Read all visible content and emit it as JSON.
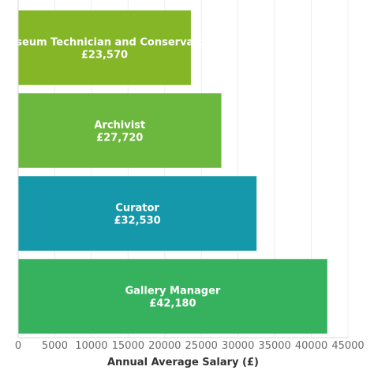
{
  "chart_data": {
    "type": "bar",
    "orientation": "horizontal",
    "categories": [
      "Museum Technician and Conservator",
      "Archivist",
      "Curator",
      "Gallery Manager"
    ],
    "values": [
      23570,
      27720,
      32530,
      42180
    ],
    "value_labels": [
      "£23,570",
      "£27,720",
      "£32,530",
      "£42,180"
    ],
    "bar_colors": [
      "#84b627",
      "#6cb83e",
      "#1598a9",
      "#36b25e"
    ],
    "title": "",
    "xlabel": "Annual Average Salary (£)",
    "ylabel": "",
    "xlim": [
      0,
      45000
    ],
    "xticks": [
      0,
      5000,
      10000,
      15000,
      20000,
      25000,
      30000,
      35000,
      40000,
      45000
    ],
    "grid": "vertical",
    "legend": "none"
  }
}
